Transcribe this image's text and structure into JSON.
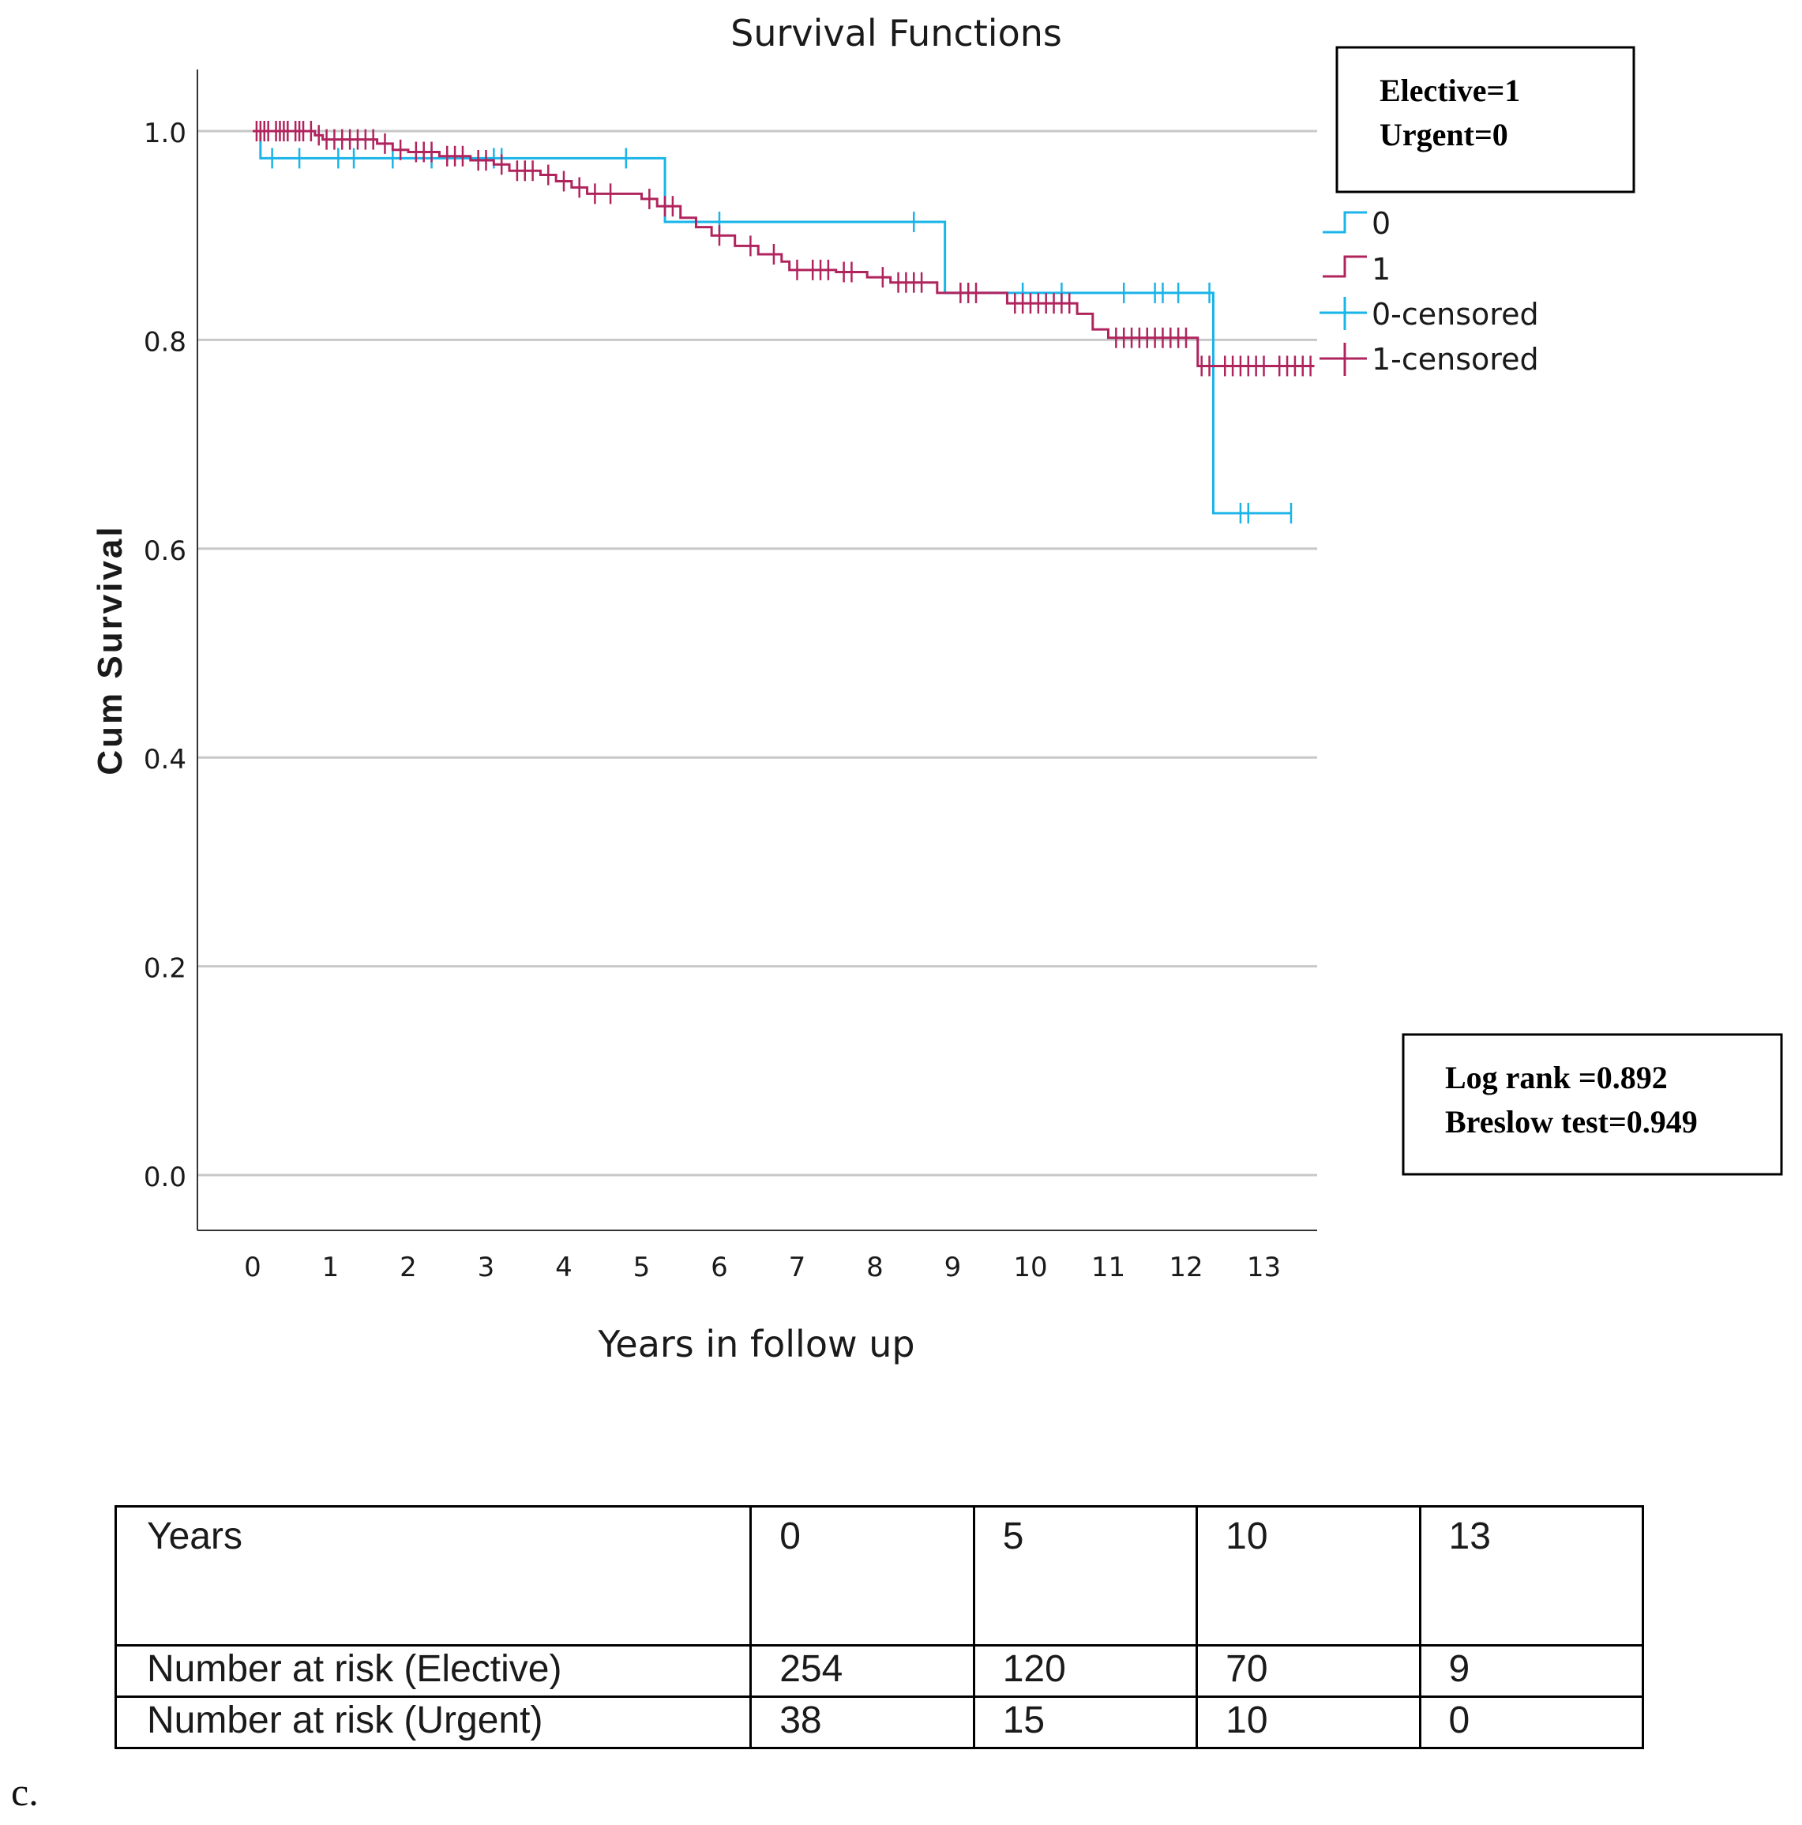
{
  "chart_data": {
    "type": "line",
    "subtype": "kaplan-meier step",
    "title": "Survival Functions",
    "xlabel": "Years in follow up",
    "ylabel": "Cum Survival",
    "xlim": [
      -0.7,
      13.7
    ],
    "ylim": [
      -0.05,
      1.05
    ],
    "x_ticks": [
      0,
      1,
      2,
      3,
      4,
      5,
      6,
      7,
      8,
      9,
      10,
      11,
      12,
      13
    ],
    "y_ticks": [
      0.0,
      0.2,
      0.4,
      0.6,
      0.8,
      1.0
    ],
    "y_tick_labels": [
      "0.0",
      "0.2",
      "0.4",
      "0.6",
      "0.8",
      "1.0"
    ],
    "grid": "horizontal",
    "series": [
      {
        "name": "0",
        "color": "#1ab4e8",
        "steps": [
          [
            0,
            1.0
          ],
          [
            0.1,
            0.974
          ],
          [
            5.3,
            0.913
          ],
          [
            8.9,
            0.845
          ],
          [
            12.35,
            0.634
          ],
          [
            13.35,
            0.634
          ]
        ],
        "censored": [
          [
            0.25,
            0.974
          ],
          [
            0.6,
            0.974
          ],
          [
            1.1,
            0.974
          ],
          [
            1.3,
            0.974
          ],
          [
            1.8,
            0.974
          ],
          [
            2.3,
            0.974
          ],
          [
            3.1,
            0.974
          ],
          [
            3.2,
            0.974
          ],
          [
            4.8,
            0.974
          ],
          [
            6.0,
            0.913
          ],
          [
            8.5,
            0.913
          ],
          [
            9.9,
            0.845
          ],
          [
            10.4,
            0.845
          ],
          [
            11.2,
            0.845
          ],
          [
            11.6,
            0.845
          ],
          [
            11.7,
            0.845
          ],
          [
            11.9,
            0.845
          ],
          [
            12.3,
            0.845
          ],
          [
            12.7,
            0.634
          ],
          [
            12.8,
            0.634
          ],
          [
            13.35,
            0.634
          ]
        ]
      },
      {
        "name": "1",
        "color": "#b0245e",
        "steps": [
          [
            0,
            1.0
          ],
          [
            0.8,
            0.996
          ],
          [
            0.9,
            0.992
          ],
          [
            1.6,
            0.988
          ],
          [
            1.8,
            0.982
          ],
          [
            2.0,
            0.98
          ],
          [
            2.4,
            0.976
          ],
          [
            2.8,
            0.972
          ],
          [
            3.1,
            0.968
          ],
          [
            3.3,
            0.962
          ],
          [
            3.7,
            0.958
          ],
          [
            3.9,
            0.952
          ],
          [
            4.1,
            0.946
          ],
          [
            4.3,
            0.94
          ],
          [
            5.0,
            0.935
          ],
          [
            5.2,
            0.928
          ],
          [
            5.5,
            0.917
          ],
          [
            5.7,
            0.908
          ],
          [
            5.9,
            0.9
          ],
          [
            6.2,
            0.89
          ],
          [
            6.5,
            0.882
          ],
          [
            6.8,
            0.875
          ],
          [
            6.9,
            0.867
          ],
          [
            7.5,
            0.865
          ],
          [
            7.9,
            0.86
          ],
          [
            8.2,
            0.855
          ],
          [
            8.8,
            0.845
          ],
          [
            9.7,
            0.835
          ],
          [
            10.6,
            0.825
          ],
          [
            10.8,
            0.81
          ],
          [
            11.0,
            0.802
          ],
          [
            12.15,
            0.775
          ],
          [
            13.65,
            0.775
          ]
        ],
        "censored": [
          [
            0.05,
            1.0
          ],
          [
            0.1,
            1.0
          ],
          [
            0.15,
            1.0
          ],
          [
            0.2,
            1.0
          ],
          [
            0.3,
            1.0
          ],
          [
            0.35,
            1.0
          ],
          [
            0.4,
            1.0
          ],
          [
            0.45,
            1.0
          ],
          [
            0.55,
            1.0
          ],
          [
            0.6,
            1.0
          ],
          [
            0.65,
            1.0
          ],
          [
            0.75,
            1.0
          ],
          [
            0.85,
            0.996
          ],
          [
            0.95,
            0.992
          ],
          [
            1.05,
            0.992
          ],
          [
            1.15,
            0.992
          ],
          [
            1.25,
            0.992
          ],
          [
            1.35,
            0.992
          ],
          [
            1.45,
            0.992
          ],
          [
            1.55,
            0.992
          ],
          [
            1.7,
            0.988
          ],
          [
            1.9,
            0.982
          ],
          [
            2.1,
            0.98
          ],
          [
            2.2,
            0.98
          ],
          [
            2.3,
            0.98
          ],
          [
            2.5,
            0.976
          ],
          [
            2.6,
            0.976
          ],
          [
            2.7,
            0.976
          ],
          [
            2.9,
            0.972
          ],
          [
            3.0,
            0.972
          ],
          [
            3.2,
            0.968
          ],
          [
            3.4,
            0.962
          ],
          [
            3.5,
            0.962
          ],
          [
            3.6,
            0.962
          ],
          [
            3.8,
            0.958
          ],
          [
            4.0,
            0.952
          ],
          [
            4.2,
            0.946
          ],
          [
            4.4,
            0.94
          ],
          [
            4.6,
            0.94
          ],
          [
            5.1,
            0.935
          ],
          [
            5.3,
            0.928
          ],
          [
            5.4,
            0.928
          ],
          [
            6.0,
            0.9
          ],
          [
            6.4,
            0.89
          ],
          [
            6.7,
            0.882
          ],
          [
            7.0,
            0.867
          ],
          [
            7.2,
            0.867
          ],
          [
            7.3,
            0.867
          ],
          [
            7.4,
            0.867
          ],
          [
            7.6,
            0.865
          ],
          [
            7.7,
            0.865
          ],
          [
            8.1,
            0.86
          ],
          [
            8.3,
            0.855
          ],
          [
            8.4,
            0.855
          ],
          [
            8.5,
            0.855
          ],
          [
            8.6,
            0.855
          ],
          [
            9.1,
            0.845
          ],
          [
            9.2,
            0.845
          ],
          [
            9.3,
            0.845
          ],
          [
            9.8,
            0.835
          ],
          [
            9.9,
            0.835
          ],
          [
            10.0,
            0.835
          ],
          [
            10.1,
            0.835
          ],
          [
            10.2,
            0.835
          ],
          [
            10.3,
            0.835
          ],
          [
            10.4,
            0.835
          ],
          [
            10.5,
            0.835
          ],
          [
            11.1,
            0.802
          ],
          [
            11.2,
            0.802
          ],
          [
            11.3,
            0.802
          ],
          [
            11.4,
            0.802
          ],
          [
            11.5,
            0.802
          ],
          [
            11.6,
            0.802
          ],
          [
            11.7,
            0.802
          ],
          [
            11.8,
            0.802
          ],
          [
            11.9,
            0.802
          ],
          [
            12.0,
            0.802
          ],
          [
            12.2,
            0.775
          ],
          [
            12.3,
            0.775
          ],
          [
            12.5,
            0.775
          ],
          [
            12.6,
            0.775
          ],
          [
            12.7,
            0.775
          ],
          [
            12.8,
            0.775
          ],
          [
            12.9,
            0.775
          ],
          [
            13.0,
            0.775
          ],
          [
            13.2,
            0.775
          ],
          [
            13.3,
            0.775
          ],
          [
            13.4,
            0.775
          ],
          [
            13.5,
            0.775
          ],
          [
            13.6,
            0.775
          ]
        ]
      }
    ],
    "legend": {
      "placement": "right",
      "entries": [
        "0",
        "1",
        "0-censored",
        "1-censored"
      ]
    },
    "annotations": {
      "group_key": [
        "Elective=1",
        "Urgent=0"
      ],
      "tests": [
        "Log rank =0.892",
        "Breslow test=0.949"
      ],
      "test_color": "#ff0000"
    }
  },
  "risk_table": {
    "header": [
      "Years",
      "0",
      "5",
      "10",
      "13"
    ],
    "rows": [
      [
        "Number at risk (Elective)",
        "254",
        "120",
        "70",
        "9"
      ],
      [
        "Number at risk (Urgent)",
        "38",
        "15",
        "10",
        "0"
      ]
    ]
  },
  "panel_letter": "c."
}
